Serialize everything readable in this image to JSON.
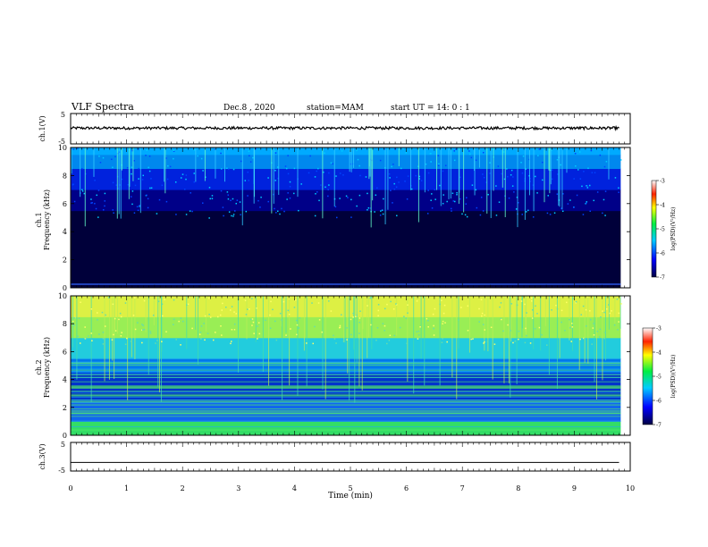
{
  "header": {
    "title": "VLF Spectra",
    "date": "Dec.8  , 2020",
    "station": "station=MAM",
    "start": "start  UT  =   14: 0  : 1"
  },
  "chart_data": [
    {
      "type": "line",
      "name": "ch1-waveform",
      "ylabel": "ch.1(V)",
      "ylim": [
        -5,
        5
      ],
      "yticklabels": [
        "5",
        "-5"
      ],
      "x": [
        0,
        1,
        2,
        3,
        4,
        5,
        6,
        7,
        8,
        9,
        9.8
      ],
      "y": [
        0.2,
        0.2,
        0.2,
        0.2,
        0.2,
        0.2,
        0.2,
        0.2,
        0.2,
        0.2,
        0.2
      ]
    },
    {
      "type": "heatmap",
      "name": "ch1-spectrogram",
      "ylabel": "ch.1\nFrequency (kHz)",
      "ylim": [
        0,
        10
      ],
      "yticks": [
        0,
        2,
        4,
        6,
        8,
        10
      ],
      "colorbar": {
        "label": "log(PSD)(V²/Hz)",
        "range": [
          -7,
          -3
        ],
        "ticks": [
          "-3",
          "-4",
          "-5",
          "-6",
          "-7"
        ]
      }
    },
    {
      "type": "heatmap",
      "name": "ch2-spectrogram",
      "ylabel": "ch.2\nFrequency (kHz)",
      "ylim": [
        0,
        10
      ],
      "yticks": [
        0,
        2,
        4,
        6,
        8,
        10
      ],
      "colorbar": {
        "label": "log(PSD)(V²/Hz)",
        "range": [
          -7,
          -3
        ],
        "ticks": [
          "-3",
          "-4",
          "-5",
          "-6",
          "-7"
        ]
      }
    },
    {
      "type": "line",
      "name": "ch3-waveform",
      "ylabel": "ch.3(V)",
      "ylim": [
        -5,
        5
      ],
      "yticklabels": [
        "5",
        "-5"
      ],
      "x": [
        0,
        9.8
      ],
      "y": [
        -2,
        -2
      ]
    }
  ],
  "xaxis": {
    "label": "Time  (min)",
    "range": [
      0,
      10
    ],
    "ticks": [
      "0",
      "1",
      "2",
      "3",
      "4",
      "5",
      "6",
      "7",
      "8",
      "9",
      "10"
    ]
  },
  "colors": {
    "black": "#000000",
    "navy": "#00007a",
    "blue": "#0033ff",
    "cyan": "#33ccff",
    "green": "#33ee33",
    "yellow": "#f5f533",
    "red": "#ff0000"
  }
}
